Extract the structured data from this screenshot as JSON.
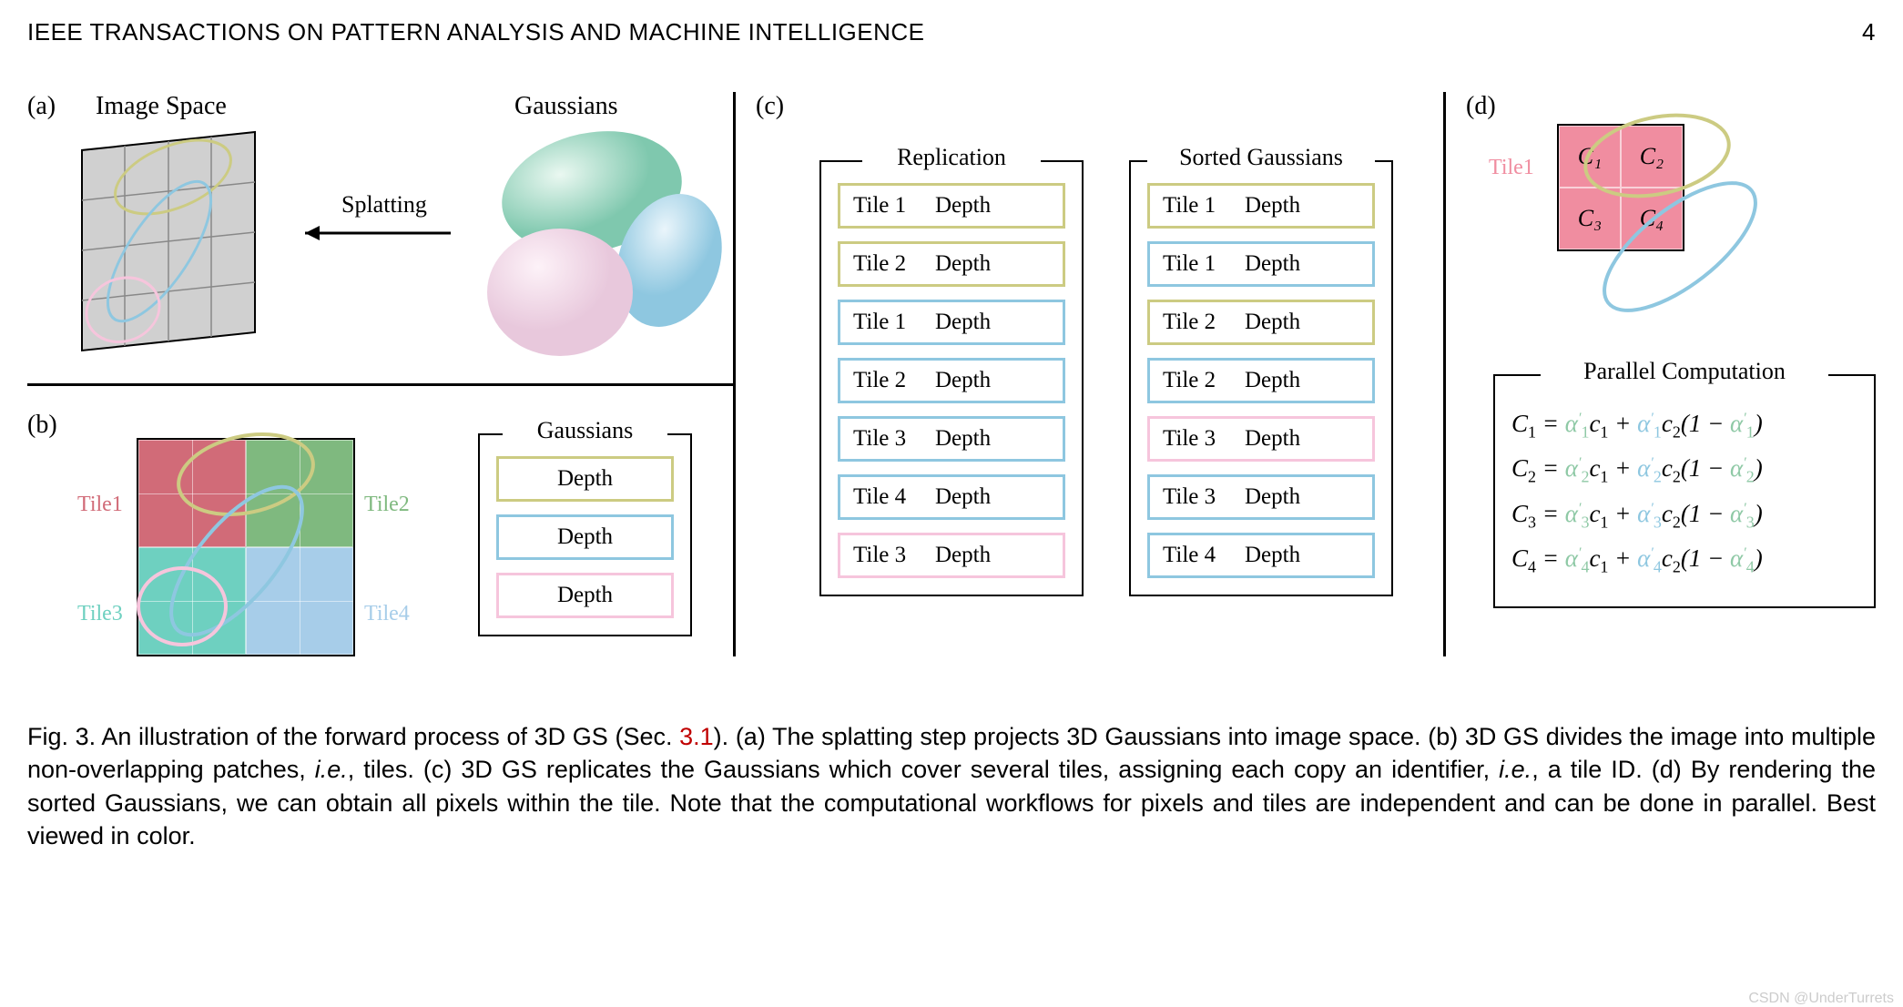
{
  "header": {
    "journal": "IEEE TRANSACTIONS ON PATTERN ANALYSIS AND MACHINE INTELLIGENCE",
    "page_number": "4"
  },
  "colors": {
    "olive": "#cccb82",
    "blue": "#8ec7e0",
    "pink": "#f6c5dc",
    "tile1": "#d16b78",
    "tile2": "#7fb97f",
    "tile3": "#6ed0c0",
    "tile4": "#a7cde9",
    "d_pink": "#f08da0",
    "ref_red": "#c00000",
    "alpha_green": "#8fc9a6",
    "alpha_blue": "#8ec7e0"
  },
  "panel_a": {
    "label": "(a)",
    "image_space_label": "Image Space",
    "arrow_label": "Splatting",
    "gaussians_label": "Gaussians"
  },
  "panel_b": {
    "label": "(b)",
    "tiles": [
      "Tile1",
      "Tile2",
      "Tile3",
      "Tile4"
    ],
    "tile_colors": [
      "tile1",
      "tile2",
      "tile3",
      "tile4"
    ],
    "box_title": "Gaussians",
    "rows": [
      {
        "text": "Depth",
        "color": "olive"
      },
      {
        "text": "Depth",
        "color": "blue"
      },
      {
        "text": "Depth",
        "color": "pink"
      }
    ]
  },
  "panel_c": {
    "label": "(c)",
    "replication": {
      "title": "Replication",
      "rows": [
        {
          "tile": "Tile 1",
          "depth": "Depth",
          "color": "olive"
        },
        {
          "tile": "Tile 2",
          "depth": "Depth",
          "color": "olive"
        },
        {
          "tile": "Tile 1",
          "depth": "Depth",
          "color": "blue"
        },
        {
          "tile": "Tile 2",
          "depth": "Depth",
          "color": "blue"
        },
        {
          "tile": "Tile 3",
          "depth": "Depth",
          "color": "blue"
        },
        {
          "tile": "Tile 4",
          "depth": "Depth",
          "color": "blue"
        },
        {
          "tile": "Tile 3",
          "depth": "Depth",
          "color": "pink"
        }
      ]
    },
    "sorted": {
      "title": "Sorted Gaussians",
      "rows": [
        {
          "tile": "Tile 1",
          "depth": "Depth",
          "color": "olive"
        },
        {
          "tile": "Tile 1",
          "depth": "Depth",
          "color": "blue"
        },
        {
          "tile": "Tile 2",
          "depth": "Depth",
          "color": "olive"
        },
        {
          "tile": "Tile 2",
          "depth": "Depth",
          "color": "blue"
        },
        {
          "tile": "Tile 3",
          "depth": "Depth",
          "color": "pink"
        },
        {
          "tile": "Tile 3",
          "depth": "Depth",
          "color": "blue"
        },
        {
          "tile": "Tile 4",
          "depth": "Depth",
          "color": "blue"
        }
      ]
    }
  },
  "panel_d": {
    "label": "(d)",
    "tile_label": "Tile1",
    "cells": [
      "C₁",
      "C₂",
      "C₃",
      "C₄"
    ],
    "box_title": "Parallel Computation",
    "equations": [
      {
        "lhs": "C",
        "lhs_sub": "1"
      },
      {
        "lhs": "C",
        "lhs_sub": "2"
      },
      {
        "lhs": "C",
        "lhs_sub": "3"
      },
      {
        "lhs": "C",
        "lhs_sub": "4"
      }
    ]
  },
  "caption": {
    "prefix": "Fig. 3. An illustration of the forward process of 3D GS (Sec. ",
    "sec_ref": "3.1",
    "body": "). (a) The splatting step projects 3D Gaussians into image space. (b) 3D GS divides the image into multiple non-overlapping patches, ",
    "ie1": "i.e.",
    "body2": ", tiles. (c) 3D GS replicates the Gaussians which cover several tiles, assigning each copy an identifier, ",
    "ie2": "i.e.",
    "body3": ", a tile ID. (d) By rendering the sorted Gaussians, we can obtain all pixels within the tile. Note that the computational workflows for pixels and tiles are independent and can be done in parallel. Best viewed in color."
  },
  "watermark": "CSDN @UnderTurrets"
}
